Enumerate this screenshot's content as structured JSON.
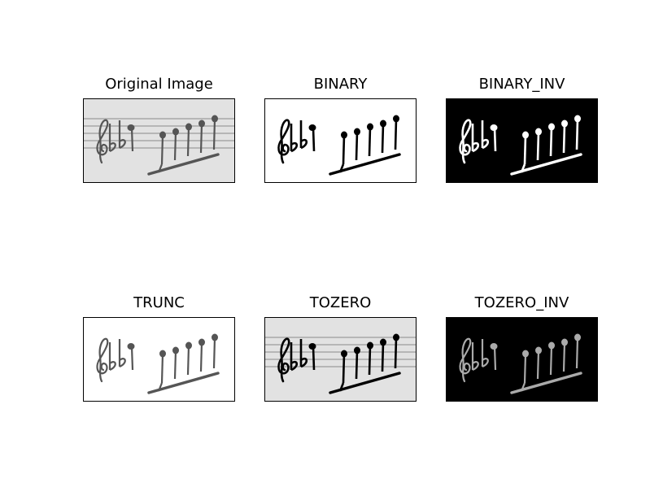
{
  "figure": {
    "panels": [
      {
        "title": "Original Image",
        "variant": "original",
        "background": "#e2e2e2",
        "ink": "#555555"
      },
      {
        "title": "BINARY",
        "variant": "binary",
        "background": "#ffffff",
        "ink": "#000000"
      },
      {
        "title": "BINARY_INV",
        "variant": "binary_inv",
        "background": "#000000",
        "ink": "#ffffff"
      },
      {
        "title": "TRUNC",
        "variant": "trunc",
        "background": "#ffffff",
        "ink": "#555555"
      },
      {
        "title": "TOZERO",
        "variant": "tozero",
        "background": "#e2e2e2",
        "ink": "#000000"
      },
      {
        "title": "TOZERO_INV",
        "variant": "tozero_inv",
        "background": "#000000",
        "ink": "#aaaaaa"
      }
    ]
  }
}
